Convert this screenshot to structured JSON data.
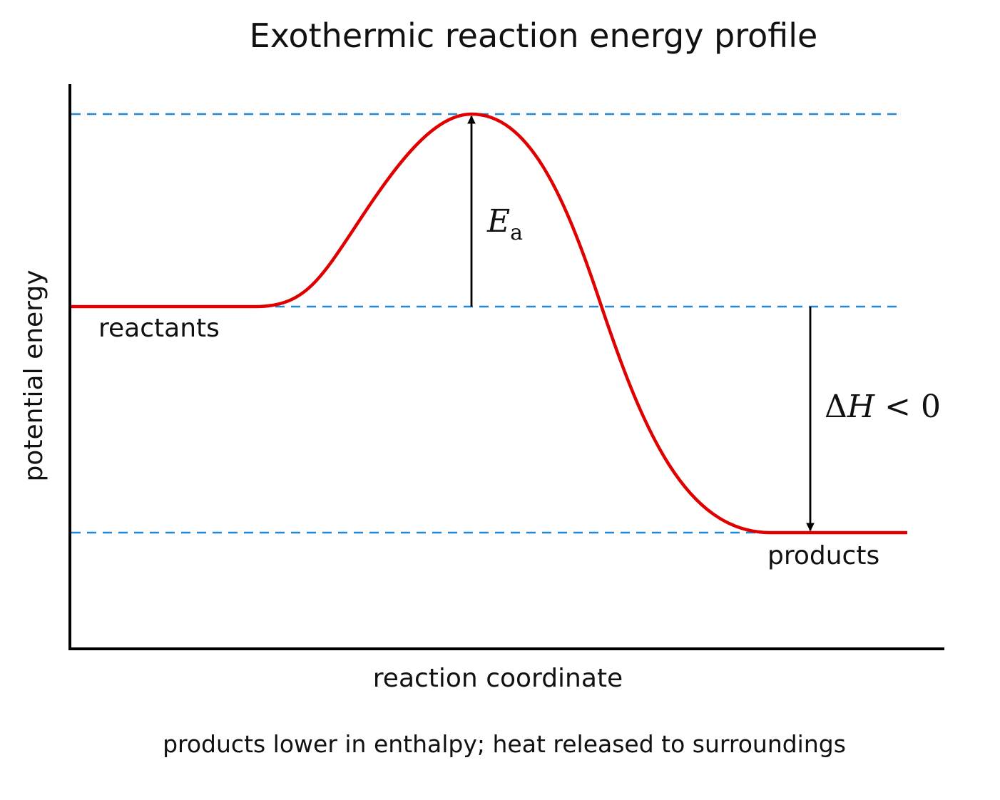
{
  "title": "Exothermic reaction energy profile",
  "axes": {
    "x_label": "reaction coordinate",
    "y_label": "potential energy"
  },
  "levels": {
    "reactants_label": "reactants",
    "products_label": "products"
  },
  "activation_energy": {
    "symbol": "E",
    "subscript": "a"
  },
  "enthalpy_change": {
    "delta": "Δ",
    "symbol": "H",
    "relation": " < 0"
  },
  "caption": "products lower in enthalpy; heat released to surroundings",
  "colors": {
    "curve": "#e00000",
    "guide_lines": "#1f88d8",
    "axes": "#000000",
    "arrows": "#000000"
  }
}
